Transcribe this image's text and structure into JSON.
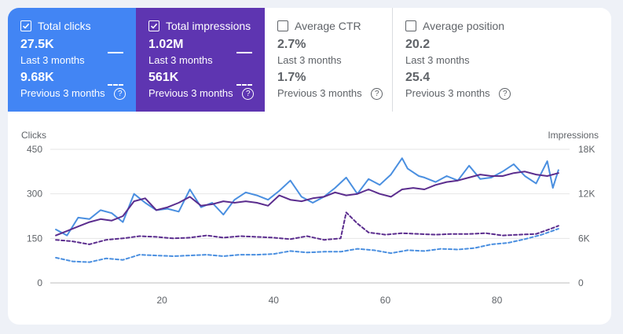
{
  "tiles": [
    {
      "label": "Total clicks",
      "current": "27.5K",
      "current_period": "Last 3 months",
      "previous": "9.68K",
      "previous_period": "Previous 3 months",
      "checked": true,
      "color": "#4285f4"
    },
    {
      "label": "Total impressions",
      "current": "1.02M",
      "current_period": "Last 3 months",
      "previous": "561K",
      "previous_period": "Previous 3 months",
      "checked": true,
      "color": "#5e35b1"
    },
    {
      "label": "Average CTR",
      "current": "2.7%",
      "current_period": "Last 3 months",
      "previous": "1.7%",
      "previous_period": "Previous 3 months",
      "checked": false
    },
    {
      "label": "Average position",
      "current": "20.2",
      "current_period": "Last 3 months",
      "previous": "25.4",
      "previous_period": "Previous 3 months",
      "checked": false
    }
  ],
  "help_glyph": "?",
  "chart_data": {
    "type": "line",
    "left_axis_label": "Clicks",
    "right_axis_label": "Impressions",
    "y_left_ticks": [
      "0",
      "150",
      "300",
      "450"
    ],
    "y_right_ticks": [
      "0",
      "6K",
      "12K",
      "18K"
    ],
    "x_ticks": [
      "20",
      "40",
      "60",
      "80"
    ],
    "xlim": [
      0,
      93
    ],
    "y_left_lim": [
      0,
      450
    ],
    "y_right_lim": [
      0,
      18000
    ],
    "grid": true,
    "series": [
      {
        "axis": "left",
        "style": "solid",
        "color": "#4a8fe0",
        "x": [
          1,
          3,
          5,
          7,
          9,
          11,
          13,
          15,
          17,
          19,
          21,
          23,
          25,
          27,
          29,
          31,
          33,
          35,
          37,
          39,
          41,
          43,
          45,
          47,
          49,
          51,
          53,
          55,
          57,
          59,
          61,
          63,
          64,
          66,
          67,
          69,
          71,
          73,
          75,
          77,
          79,
          81,
          83,
          85,
          87,
          89,
          90,
          91
        ],
        "values": [
          180,
          160,
          220,
          215,
          245,
          235,
          205,
          300,
          270,
          245,
          250,
          240,
          315,
          255,
          270,
          230,
          280,
          305,
          295,
          280,
          310,
          345,
          290,
          270,
          290,
          320,
          355,
          300,
          350,
          330,
          365,
          420,
          385,
          360,
          355,
          340,
          360,
          345,
          395,
          350,
          355,
          375,
          400,
          360,
          335,
          410,
          320,
          380
        ]
      },
      {
        "axis": "left",
        "style": "solid",
        "color": "#5b2d8e",
        "x": [
          1,
          3,
          5,
          7,
          9,
          11,
          13,
          15,
          17,
          19,
          21,
          23,
          25,
          27,
          29,
          31,
          33,
          35,
          37,
          39,
          41,
          43,
          45,
          47,
          49,
          51,
          53,
          55,
          57,
          59,
          61,
          63,
          65,
          67,
          69,
          71,
          73,
          75,
          77,
          79,
          81,
          83,
          85,
          87,
          89,
          91
        ],
        "values": [
          160,
          175,
          190,
          205,
          215,
          210,
          225,
          275,
          285,
          245,
          255,
          270,
          290,
          260,
          265,
          275,
          270,
          275,
          270,
          260,
          295,
          280,
          275,
          285,
          290,
          305,
          295,
          300,
          315,
          300,
          290,
          315,
          320,
          315,
          330,
          340,
          345,
          355,
          365,
          360,
          360,
          370,
          375,
          365,
          360,
          370
        ]
      },
      {
        "axis": "right",
        "style": "dashed",
        "color": "#5b2d8e",
        "x": [
          1,
          4,
          7,
          10,
          13,
          16,
          19,
          22,
          25,
          28,
          31,
          34,
          37,
          40,
          43,
          46,
          49,
          52,
          53,
          55,
          57,
          60,
          63,
          66,
          69,
          72,
          75,
          78,
          81,
          84,
          87,
          90,
          91
        ],
        "values": [
          5800,
          5600,
          5200,
          5800,
          6000,
          6300,
          6200,
          6000,
          6100,
          6400,
          6100,
          6300,
          6200,
          6100,
          5900,
          6300,
          5800,
          6000,
          9500,
          8000,
          6800,
          6500,
          6700,
          6600,
          6500,
          6600,
          6600,
          6700,
          6400,
          6500,
          6600,
          7400,
          7700
        ]
      },
      {
        "axis": "right",
        "style": "dashed",
        "color": "#4a8fe0",
        "x": [
          1,
          4,
          7,
          10,
          13,
          16,
          19,
          22,
          25,
          28,
          31,
          34,
          37,
          40,
          43,
          46,
          49,
          52,
          55,
          58,
          61,
          64,
          67,
          70,
          73,
          76,
          79,
          82,
          85,
          88,
          91
        ],
        "values": [
          3400,
          2900,
          2800,
          3300,
          3100,
          3800,
          3700,
          3600,
          3700,
          3800,
          3600,
          3800,
          3800,
          3900,
          4300,
          4100,
          4200,
          4200,
          4600,
          4400,
          4000,
          4400,
          4300,
          4600,
          4500,
          4700,
          5200,
          5400,
          5900,
          6500,
          7300
        ]
      }
    ]
  }
}
